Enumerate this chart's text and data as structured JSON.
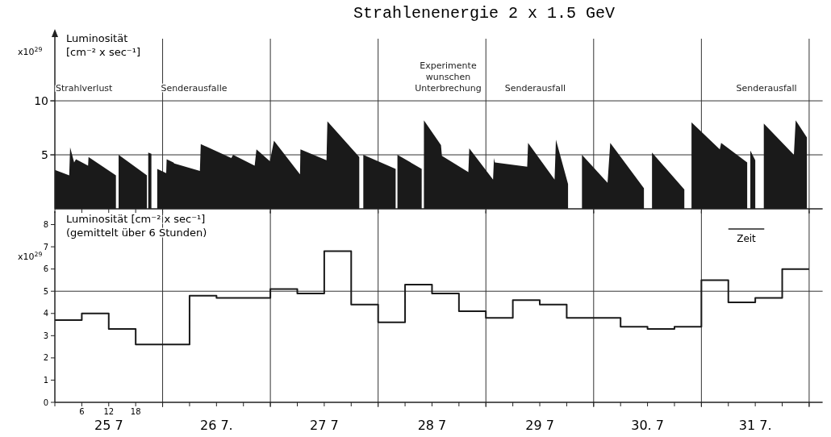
{
  "chart_data": [
    {
      "type": "area",
      "title": "Strahlenenergie 2 x 1.5 GeV",
      "ylabel": "Luminosität",
      "subtitle": "[cm⁻² x sec⁻¹]",
      "xlim": [
        0,
        171
      ],
      "ylim": [
        0,
        16.5
      ],
      "yticks": [
        5,
        10
      ],
      "xticks": [
        {
          "value": 0,
          "label": null
        },
        {
          "value": 6,
          "label": null
        },
        {
          "value": 12,
          "label": null
        },
        {
          "value": 18,
          "label": null
        },
        {
          "value": 24,
          "label": null
        },
        {
          "value": 48,
          "label": null
        },
        {
          "value": 72,
          "label": null
        },
        {
          "value": 96,
          "label": null
        },
        {
          "value": 120,
          "label": null
        },
        {
          "value": 144,
          "label": null
        },
        {
          "value": 168,
          "label": null
        }
      ],
      "grid": "y",
      "tick_labels": "y",
      "ref_lines": [
        {
          "axis": "x",
          "value": 24
        },
        {
          "axis": "x",
          "value": 48
        },
        {
          "axis": "x",
          "value": 72
        },
        {
          "axis": "x",
          "value": 96
        },
        {
          "axis": "x",
          "value": 120
        },
        {
          "axis": "x",
          "value": 144
        },
        {
          "axis": "x",
          "value": 168
        }
      ],
      "annotations": [
        "x10$^{29}$",
        "Strahlverlust",
        "Senderausfalle",
        "Experimente\nwunschen\nUnterbrechung",
        "Senderausfall",
        "Senderausfall"
      ],
      "series": [
        {
          "color": "#1a1a1a",
          "x": [
            0,
            3.2,
            3.4,
            4.3,
            4.7,
            7.4,
            7.5,
            13.6,
            null,
            14.2,
            20.5,
            null,
            20.8,
            21.5,
            null,
            22.8,
            24.8,
            24.9,
            26.4,
            26.6,
            32.3,
            32.5,
            39.3,
            39.7,
            44.5,
            44.9,
            47.9,
            48.8,
            54.6,
            54.7,
            60.5,
            60.7,
            67.8,
            null,
            68.7,
            75.9,
            null,
            76.3,
            81.7,
            null,
            82.2,
            86.0,
            86.2,
            92.1,
            92.3,
            97.6,
            97.8,
            98.0,
            105.2,
            105.4,
            111.3,
            111.6,
            114.3,
            null,
            117.4,
            123.1,
            123.7,
            131.2,
            null,
            133.0,
            140.2,
            null,
            141.8,
            148.1,
            148.4,
            154.2,
            null,
            154.9,
            156.0,
            null,
            157.9,
            164.6,
            165.0,
            167.5
          ],
          "values": [
            3.6,
            3.1,
            5.7,
            4.3,
            4.6,
            4.0,
            4.8,
            3.1,
            null,
            5.0,
            3.1,
            null,
            5.2,
            5.1,
            null,
            3.7,
            3.3,
            4.6,
            4.3,
            4.2,
            3.5,
            6.0,
            4.7,
            5.0,
            4.0,
            5.5,
            4.4,
            6.3,
            3.2,
            5.5,
            4.5,
            8.1,
            4.8,
            null,
            5.0,
            3.7,
            null,
            5.0,
            3.7,
            null,
            8.2,
            5.9,
            4.9,
            3.4,
            5.6,
            2.7,
            4.7,
            4.3,
            3.9,
            6.1,
            2.7,
            6.4,
            2.3,
            null,
            5.0,
            2.4,
            6.1,
            1.9,
            null,
            5.2,
            1.8,
            null,
            8.0,
            5.5,
            6.1,
            4.3,
            null,
            5.4,
            4.5,
            null,
            7.9,
            5.0,
            8.2,
            6.6
          ]
        }
      ]
    },
    {
      "type": "step",
      "ylabel": "Luminosität [cm⁻² x sec⁻¹]",
      "subtitle": "(gemittelt über 6 Stunden)",
      "xlim": [
        0,
        171
      ],
      "ylim": [
        0,
        8.6
      ],
      "yticks": [
        0,
        1,
        2,
        3,
        4,
        5,
        6,
        7,
        8
      ],
      "xticks": [
        {
          "value": 0,
          "label": null
        },
        {
          "value": 6,
          "label": "6"
        },
        {
          "value": 12,
          "label": "12"
        },
        {
          "value": 18,
          "label": "18"
        },
        {
          "value": 24,
          "label": null
        },
        {
          "value": 30,
          "label": null
        },
        {
          "value": 36,
          "label": null
        },
        {
          "value": 42,
          "label": null
        },
        {
          "value": 48,
          "label": null
        },
        {
          "value": 54,
          "label": null
        },
        {
          "value": 60,
          "label": null
        },
        {
          "value": 66,
          "label": null
        },
        {
          "value": 72,
          "label": null
        },
        {
          "value": 78,
          "label": null
        },
        {
          "value": 84,
          "label": null
        },
        {
          "value": 90,
          "label": null
        },
        {
          "value": 96,
          "label": null
        },
        {
          "value": 102,
          "label": null
        },
        {
          "value": 108,
          "label": null
        },
        {
          "value": 114,
          "label": null
        },
        {
          "value": 120,
          "label": null
        },
        {
          "value": 126,
          "label": null
        },
        {
          "value": 132,
          "label": null
        },
        {
          "value": 138,
          "label": null
        },
        {
          "value": 144,
          "label": null
        },
        {
          "value": 150,
          "label": null
        },
        {
          "value": 156,
          "label": null
        },
        {
          "value": 162,
          "label": null
        },
        {
          "value": 168,
          "label": null
        }
      ],
      "ref_lines": [
        {
          "axis": "y",
          "value": 5
        },
        {
          "axis": "x",
          "value": 24
        },
        {
          "axis": "x",
          "value": 48
        },
        {
          "axis": "x",
          "value": 72
        },
        {
          "axis": "x",
          "value": 96
        },
        {
          "axis": "x",
          "value": 120
        },
        {
          "axis": "x",
          "value": 144
        },
        {
          "axis": "x",
          "value": 168
        }
      ],
      "annotations": [
        "x10$^{29}$",
        "Zeit",
        "25 7",
        "26 7.",
        "27 7",
        "28 7",
        "29 7",
        "30. 7",
        "31 7."
      ],
      "series": [
        {
          "color": "#1a1a1a",
          "x": [
            0,
            6,
            12,
            18,
            24,
            30,
            36,
            42,
            48,
            54,
            60,
            66,
            72,
            78,
            84,
            90,
            96,
            102,
            108,
            114,
            120,
            126,
            132,
            138,
            144,
            150,
            156,
            162,
            168
          ],
          "values": [
            3.7,
            4.0,
            3.3,
            2.6,
            2.6,
            4.8,
            4.7,
            4.7,
            5.1,
            4.9,
            6.8,
            4.4,
            3.6,
            5.3,
            4.9,
            4.1,
            3.8,
            4.6,
            4.4,
            3.8,
            3.8,
            3.4,
            3.3,
            3.4,
            5.5,
            4.5,
            4.7,
            6.0,
            6.0
          ]
        }
      ]
    }
  ]
}
